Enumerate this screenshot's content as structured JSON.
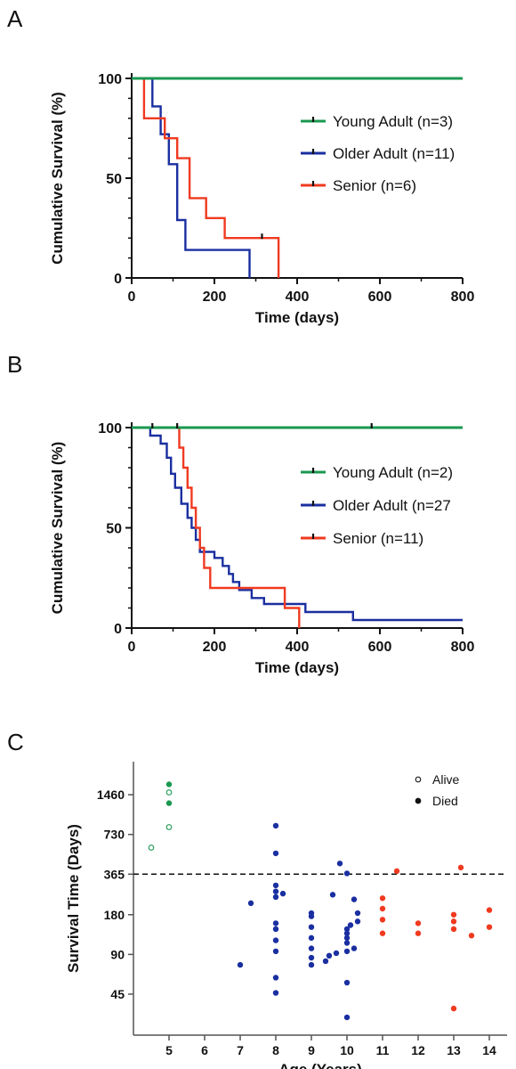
{
  "chart_data": [
    {
      "panel": "A",
      "type": "line",
      "xlabel": "Time (days)",
      "ylabel": "Cumulative Survival (%)",
      "xlim": [
        0,
        800
      ],
      "ylim": [
        0,
        100
      ],
      "xticks": [
        0,
        200,
        400,
        600,
        800
      ],
      "yticks": [
        0,
        50,
        100
      ],
      "legend_position": "right",
      "series": [
        {
          "name": "Young Adult (n=3)",
          "color": "#1a9850",
          "steps": [
            [
              0,
              100
            ],
            [
              800,
              100
            ]
          ],
          "censored": []
        },
        {
          "name": "Older Adult (n=11)",
          "color": "#1a2fa0",
          "steps": [
            [
              0,
              100
            ],
            [
              50,
              100
            ],
            [
              50,
              86
            ],
            [
              70,
              86
            ],
            [
              70,
              72
            ],
            [
              90,
              72
            ],
            [
              90,
              57
            ],
            [
              110,
              57
            ],
            [
              110,
              29
            ],
            [
              130,
              29
            ],
            [
              130,
              14
            ],
            [
              285,
              14
            ],
            [
              285,
              0
            ]
          ],
          "censored": []
        },
        {
          "name": "Senior (n=6)",
          "color": "#f03a20",
          "steps": [
            [
              0,
              100
            ],
            [
              30,
              100
            ],
            [
              30,
              80
            ],
            [
              80,
              80
            ],
            [
              80,
              70
            ],
            [
              110,
              70
            ],
            [
              110,
              60
            ],
            [
              140,
              60
            ],
            [
              140,
              40
            ],
            [
              180,
              40
            ],
            [
              180,
              30
            ],
            [
              225,
              30
            ],
            [
              225,
              20
            ],
            [
              355,
              20
            ],
            [
              355,
              0
            ]
          ],
          "censored": [
            [
              315,
              20
            ]
          ]
        }
      ]
    },
    {
      "panel": "B",
      "type": "line",
      "xlabel": "Time (days)",
      "ylabel": "Cumulative Survival (%)",
      "xlim": [
        0,
        800
      ],
      "ylim": [
        0,
        100
      ],
      "xticks": [
        0,
        200,
        400,
        600,
        800
      ],
      "yticks": [
        0,
        50,
        100
      ],
      "legend_position": "right",
      "series": [
        {
          "name": "Young Adult (n=2)",
          "color": "#1a9850",
          "steps": [
            [
              0,
              100
            ],
            [
              800,
              100
            ]
          ],
          "censored": [
            [
              50,
              100
            ],
            [
              110,
              100
            ],
            [
              580,
              100
            ]
          ]
        },
        {
          "name": "Older Adult (n=27",
          "color": "#1a2fa0",
          "steps": [
            [
              0,
              100
            ],
            [
              45,
              100
            ],
            [
              45,
              96
            ],
            [
              70,
              96
            ],
            [
              70,
              92
            ],
            [
              85,
              92
            ],
            [
              85,
              85
            ],
            [
              95,
              85
            ],
            [
              95,
              77
            ],
            [
              105,
              77
            ],
            [
              105,
              70
            ],
            [
              120,
              70
            ],
            [
              120,
              62
            ],
            [
              135,
              62
            ],
            [
              135,
              55
            ],
            [
              145,
              55
            ],
            [
              145,
              50
            ],
            [
              155,
              50
            ],
            [
              155,
              44
            ],
            [
              165,
              44
            ],
            [
              165,
              38
            ],
            [
              200,
              38
            ],
            [
              200,
              35
            ],
            [
              220,
              35
            ],
            [
              220,
              31
            ],
            [
              235,
              31
            ],
            [
              235,
              27
            ],
            [
              245,
              27
            ],
            [
              245,
              23
            ],
            [
              260,
              23
            ],
            [
              260,
              19
            ],
            [
              290,
              19
            ],
            [
              290,
              15
            ],
            [
              320,
              15
            ],
            [
              320,
              12
            ],
            [
              420,
              12
            ],
            [
              420,
              8
            ],
            [
              535,
              8
            ],
            [
              535,
              4
            ],
            [
              800,
              4
            ]
          ],
          "censored": []
        },
        {
          "name": "Senior (n=11)",
          "color": "#f03a20",
          "steps": [
            [
              0,
              100
            ],
            [
              115,
              100
            ],
            [
              115,
              90
            ],
            [
              125,
              90
            ],
            [
              125,
              80
            ],
            [
              135,
              80
            ],
            [
              135,
              70
            ],
            [
              145,
              70
            ],
            [
              145,
              60
            ],
            [
              155,
              60
            ],
            [
              155,
              50
            ],
            [
              165,
              50
            ],
            [
              165,
              40
            ],
            [
              175,
              40
            ],
            [
              175,
              30
            ],
            [
              190,
              30
            ],
            [
              190,
              20
            ],
            [
              370,
              20
            ],
            [
              370,
              10
            ],
            [
              405,
              10
            ],
            [
              405,
              0
            ]
          ],
          "censored": []
        }
      ]
    },
    {
      "panel": "C",
      "type": "scatter",
      "xlabel": "Age (Years)",
      "ylabel": "Survival Time (Days)",
      "xlim": [
        4,
        14.5
      ],
      "ylim": [
        22,
        2600
      ],
      "yscale": "log2",
      "xticks": [
        5,
        6,
        7,
        8,
        9,
        10,
        11,
        12,
        13,
        14
      ],
      "yticks": [
        45,
        90,
        180,
        365,
        730,
        1460
      ],
      "reference_line": 365,
      "legend_position": "top-right",
      "legend": [
        {
          "label": "Alive",
          "marker": "open"
        },
        {
          "label": "Died",
          "marker": "filled"
        }
      ],
      "series": [
        {
          "group": "Young Adult",
          "color": "#1a9850",
          "points": [
            [
              4.5,
              580,
              "open"
            ],
            [
              5.0,
              830,
              "open"
            ],
            [
              5.0,
              1520,
              "open"
            ],
            [
              5.0,
              1260,
              "filled"
            ],
            [
              5.0,
              1750,
              "filled"
            ]
          ]
        },
        {
          "group": "Older Adult",
          "color": "#1a2fa0",
          "points": [
            [
              7.0,
              75,
              "filled"
            ],
            [
              7.3,
              220,
              "filled"
            ],
            [
              8.0,
              850,
              "filled"
            ],
            [
              8.0,
              525,
              "filled"
            ],
            [
              8.0,
              300,
              "filled"
            ],
            [
              8.0,
              270,
              "filled"
            ],
            [
              8.0,
              245,
              "filled"
            ],
            [
              8.0,
              155,
              "filled"
            ],
            [
              8.0,
              140,
              "filled"
            ],
            [
              8.0,
              115,
              "filled"
            ],
            [
              8.0,
              95,
              "filled"
            ],
            [
              8.0,
              60,
              "filled"
            ],
            [
              8.0,
              46,
              "filled"
            ],
            [
              8.2,
              260,
              "filled"
            ],
            [
              9.0,
              185,
              "filled"
            ],
            [
              9.0,
              175,
              "filled"
            ],
            [
              9.0,
              145,
              "filled"
            ],
            [
              9.0,
              120,
              "filled"
            ],
            [
              9.0,
              100,
              "filled"
            ],
            [
              9.0,
              85,
              "filled"
            ],
            [
              9.0,
              75,
              "filled"
            ],
            [
              9.4,
              80,
              "filled"
            ],
            [
              9.5,
              88,
              "filled"
            ],
            [
              9.6,
              255,
              "filled"
            ],
            [
              9.7,
              92,
              "filled"
            ],
            [
              9.8,
              440,
              "filled"
            ],
            [
              10.0,
              370,
              "filled"
            ],
            [
              10.0,
              140,
              "filled"
            ],
            [
              10.0,
              130,
              "filled"
            ],
            [
              10.0,
              120,
              "filled"
            ],
            [
              10.0,
              110,
              "filled"
            ],
            [
              10.0,
              95,
              "filled"
            ],
            [
              10.0,
              55,
              "filled"
            ],
            [
              10.0,
              30,
              "filled"
            ],
            [
              10.1,
              150,
              "filled"
            ],
            [
              10.2,
              100,
              "filled"
            ],
            [
              10.2,
              235,
              "filled"
            ],
            [
              10.3,
              185,
              "filled"
            ],
            [
              10.3,
              160,
              "filled"
            ]
          ]
        },
        {
          "group": "Senior",
          "color": "#f03a20",
          "points": [
            [
              11.0,
              240,
              "filled"
            ],
            [
              11.0,
              200,
              "filled"
            ],
            [
              11.0,
              165,
              "filled"
            ],
            [
              11.0,
              130,
              "filled"
            ],
            [
              11.4,
              385,
              "filled"
            ],
            [
              12.0,
              155,
              "filled"
            ],
            [
              12.0,
              130,
              "filled"
            ],
            [
              13.0,
              180,
              "filled"
            ],
            [
              13.0,
              160,
              "filled"
            ],
            [
              13.0,
              140,
              "filled"
            ],
            [
              13.0,
              35,
              "filled"
            ],
            [
              13.2,
              410,
              "filled"
            ],
            [
              13.5,
              125,
              "filled"
            ],
            [
              14.0,
              195,
              "filled"
            ],
            [
              14.0,
              145,
              "filled"
            ]
          ]
        }
      ]
    }
  ],
  "panels": {
    "A": {
      "letter": "A"
    },
    "B": {
      "letter": "B"
    },
    "C": {
      "letter": "C"
    }
  }
}
